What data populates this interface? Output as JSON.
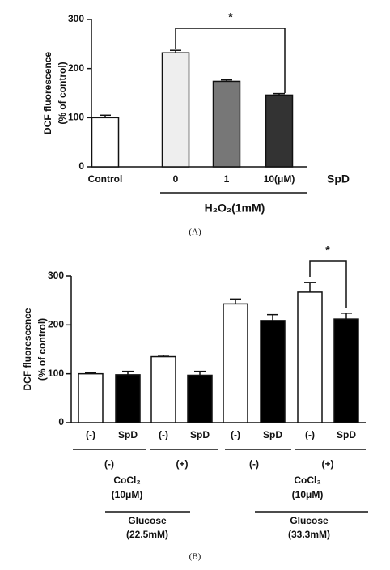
{
  "chart_data": [
    {
      "type": "bar",
      "caption": "(A)",
      "ylabel": [
        "DCF fluorescence",
        "(% of control)"
      ],
      "categories": [
        "Control",
        "0",
        "1",
        "10(μM)"
      ],
      "values": [
        100,
        232,
        174,
        146
      ],
      "errors": [
        5,
        5,
        3,
        3
      ],
      "colors": [
        "#ffffff",
        "#eeeeee",
        "#777777",
        "#333333"
      ],
      "ylim": [
        0,
        300
      ],
      "yticks": [
        0,
        100,
        200,
        300
      ],
      "axis_note": "SpD",
      "group_label": "H₂O₂(1mM)",
      "significance": "*"
    },
    {
      "type": "bar",
      "caption": "(B)",
      "ylabel": [
        "DCF fluorescence",
        "(% of control)"
      ],
      "categories": [
        "(-)",
        "SpD",
        "(-)",
        "SpD",
        "(-)",
        "SpD",
        "(-)",
        "SpD"
      ],
      "values": [
        100,
        98,
        135,
        97,
        243,
        209,
        267,
        212
      ],
      "errors": [
        2,
        7,
        3,
        8,
        10,
        12,
        20,
        12
      ],
      "colors": [
        "#ffffff",
        "#000000",
        "#ffffff",
        "#000000",
        "#ffffff",
        "#000000",
        "#ffffff",
        "#000000"
      ],
      "ylim": [
        0,
        300
      ],
      "yticks": [
        0,
        100,
        200,
        300
      ],
      "cocl2_row": [
        "(-)",
        "(+)",
        "(-)",
        "(+)"
      ],
      "condition_labels": [
        [
          "CoCl₂",
          "(10μM)"
        ],
        [
          "CoCl₂",
          "(10μM)"
        ]
      ],
      "glucose_labels": [
        [
          "Glucose",
          "(22.5mM)"
        ],
        [
          "Glucose",
          "(33.3mM)"
        ]
      ],
      "significance": "*"
    }
  ]
}
